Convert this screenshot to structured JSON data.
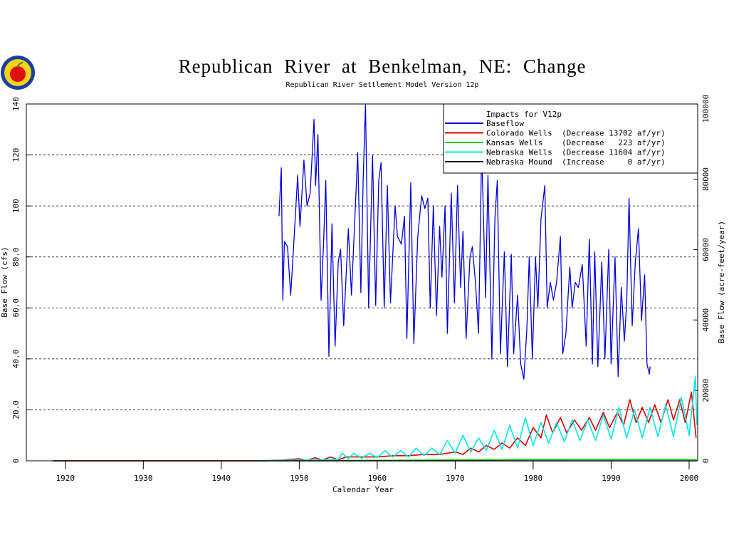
{
  "chart_data": {
    "type": "line",
    "title": "Republican River at Benkelman, NE: Change",
    "subtitle": "Republican River Settlement Model Version 12p",
    "xlabel": "Calendar Year",
    "ylabel": "Base Flow (cfs)",
    "y2label": "Base Flow (acre-feet/year)",
    "legend_title": "Impacts for V12p",
    "legend_position": "upper right",
    "grid": true,
    "xlim": [
      1915.0,
      2001.1
    ],
    "xticks": [
      1920,
      1930,
      1940,
      1950,
      1960,
      1970,
      1980,
      1990,
      2000
    ],
    "ylim": [
      0,
      140
    ],
    "yticks": [
      0,
      {
        "value": 20,
        "label": "20.0"
      },
      {
        "value": 40,
        "label": "40.0"
      },
      {
        "value": 60,
        "label": "60.0"
      },
      {
        "value": 80,
        "label": "80.0"
      },
      100,
      120,
      140
    ],
    "y2lim": [
      0,
      101340
    ],
    "y2ticks": [
      0,
      20000,
      40000,
      60000,
      80000,
      100000
    ],
    "series": [
      {
        "name": "Baseflow",
        "color": "#0000e0",
        "x": [
          1947.4,
          1947.7,
          1947.9,
          1948.1,
          1948.5,
          1948.9,
          1949.2,
          1949.8,
          1950.1,
          1950.6,
          1951.0,
          1951.4,
          1951.9,
          1952.1,
          1952.4,
          1952.8,
          1953.1,
          1953.4,
          1953.8,
          1954.2,
          1954.6,
          1955.0,
          1955.3,
          1955.7,
          1956.3,
          1956.7,
          1957.2,
          1957.5,
          1957.9,
          1958.2,
          1958.5,
          1958.9,
          1959.4,
          1959.8,
          1960.2,
          1960.5,
          1960.9,
          1961.3,
          1961.7,
          1962.3,
          1962.6,
          1963.1,
          1963.5,
          1963.8,
          1964.3,
          1964.7,
          1965.2,
          1965.7,
          1966.1,
          1966.5,
          1966.8,
          1967.2,
          1967.6,
          1968.0,
          1968.3,
          1968.7,
          1969.0,
          1969.5,
          1969.9,
          1970.3,
          1970.7,
          1971.0,
          1971.4,
          1971.9,
          1972.2,
          1972.6,
          1973.0,
          1973.4,
          1973.9,
          1974.2,
          1974.7,
          1975.1,
          1975.4,
          1975.8,
          1976.3,
          1976.7,
          1977.2,
          1977.5,
          1978.0,
          1978.4,
          1978.8,
          1979.2,
          1979.5,
          1979.9,
          1980.3,
          1980.6,
          1981.0,
          1981.5,
          1981.8,
          1982.2,
          1982.6,
          1983.0,
          1983.5,
          1983.8,
          1984.2,
          1984.7,
          1985.0,
          1985.4,
          1985.8,
          1986.3,
          1986.8,
          1987.2,
          1987.6,
          1987.9,
          1988.3,
          1988.8,
          1989.2,
          1989.7,
          1990.0,
          1990.5,
          1990.9,
          1991.3,
          1991.7,
          1992.0,
          1992.3,
          1992.7,
          1993.1,
          1993.5,
          1993.9,
          1994.3,
          1994.6,
          1994.9,
          1995.0
        ],
        "values": [
          96,
          115,
          63,
          86,
          84,
          65,
          80,
          112,
          92,
          118,
          100,
          105,
          134,
          108,
          128,
          63,
          84,
          110,
          41,
          93,
          45,
          78,
          83,
          53,
          91,
          65,
          100,
          121,
          66,
          110,
          140,
          60,
          120,
          61,
          110,
          117,
          60,
          108,
          62,
          100,
          88,
          85,
          96,
          48,
          109,
          46,
          88,
          104,
          99,
          103,
          60,
          100,
          57,
          92,
          72,
          100,
          50,
          105,
          62,
          108,
          68,
          90,
          48,
          80,
          84,
          70,
          50,
          122,
          64,
          112,
          40,
          95,
          110,
          42,
          82,
          37,
          81,
          42,
          65,
          38,
          32,
          52,
          80,
          40,
          80,
          60,
          95,
          108,
          60,
          70,
          63,
          70,
          88,
          42,
          50,
          76,
          60,
          70,
          68,
          77,
          45,
          87,
          38,
          82,
          37,
          78,
          40,
          83,
          38,
          80,
          33,
          68,
          47,
          62,
          103,
          53,
          78,
          91,
          55,
          73,
          38,
          34,
          37
        ]
      },
      {
        "name": "Colorado Wells  (Decrease 13702 af/yr)",
        "color": "#e00000",
        "x": [
          1918.4,
          1945,
          1948,
          1950,
          1951,
          1952,
          1953,
          1954,
          1955,
          1956,
          1958,
          1960,
          1962,
          1964,
          1966,
          1968,
          1970,
          1971,
          1972,
          1973,
          1974,
          1975,
          1976,
          1977,
          1978,
          1979,
          1980,
          1981,
          1981.7,
          1982.5,
          1983.5,
          1984.3,
          1985.3,
          1986.2,
          1987.2,
          1988,
          1989,
          1989.8,
          1990.8,
          1991.6,
          1992.4,
          1993.2,
          1994,
          1994.8,
          1995.6,
          1996.4,
          1997.3,
          1998,
          1998.8,
          1999.5,
          2000.3,
          2000.9
        ],
        "values": [
          0,
          0,
          0.3,
          0.8,
          0.2,
          1.2,
          0.3,
          1.5,
          0.4,
          1.5,
          1.5,
          1.5,
          2,
          2,
          2.5,
          2.5,
          3.5,
          2.5,
          5,
          3.5,
          6,
          4.5,
          7,
          5,
          9,
          6,
          13,
          9,
          18,
          11,
          17,
          11,
          16,
          12,
          17,
          12,
          19,
          13,
          19,
          14,
          24,
          15,
          21,
          15,
          22,
          15,
          24,
          16,
          24,
          15,
          27,
          9
        ]
      },
      {
        "name": "Kansas Wells    (Decrease   223 af/yr)",
        "color": "#00d000",
        "x": [
          1945,
          1960,
          1980,
          2001
        ],
        "values": [
          0,
          0.2,
          0.5,
          0.6
        ]
      },
      {
        "name": "Nebraska Wells  (Decrease 11604 af/yr)",
        "color": "#00e8e8",
        "x": [
          1945,
          1950,
          1955,
          1955.5,
          1956.3,
          1957,
          1958,
          1959,
          1960,
          1961,
          1962,
          1963,
          1964,
          1965,
          1966,
          1967,
          1968,
          1969,
          1970,
          1971,
          1972,
          1973,
          1974,
          1975,
          1976,
          1977,
          1978,
          1979,
          1980,
          1981,
          1982,
          1983,
          1984,
          1985,
          1986,
          1987,
          1988,
          1989,
          1990,
          1991,
          1992,
          1993,
          1994,
          1995,
          1996,
          1997,
          1998,
          1999,
          2000,
          2000.8,
          2001
        ],
        "values": [
          0,
          0.3,
          0.5,
          3,
          0.8,
          3,
          1,
          3,
          1.2,
          4,
          1.5,
          4,
          1.5,
          5,
          2,
          5,
          2.5,
          8,
          3,
          10,
          3.5,
          9,
          4,
          12,
          4.5,
          14,
          5,
          17,
          6,
          15,
          7,
          15,
          7.5,
          16,
          8,
          16,
          8,
          18,
          8.5,
          21,
          9,
          20,
          9,
          21,
          9.5,
          22,
          9.5,
          25,
          10,
          33,
          14
        ]
      },
      {
        "name": "Nebraska Mound  (Increase     0 af/yr)",
        "color": "#000000",
        "x": [
          1918.4,
          2001
        ],
        "values": [
          0,
          0
        ]
      }
    ]
  }
}
